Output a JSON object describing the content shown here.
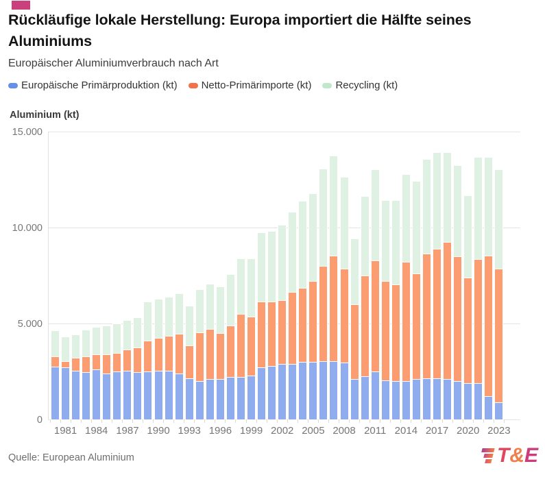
{
  "header": {
    "badge_color": "#c9407c",
    "title": "Rückläufige lokale Herstellung: Europa importiert die Hälfte seines Aluminiums",
    "subtitle": "Europäischer Aluminiumverbrauch nach Art"
  },
  "legend": [
    {
      "label": "Europäische Primärproduktion (kt)",
      "color": "#6590e8"
    },
    {
      "label": "Netto-Primärimporte (kt)",
      "color": "#f2714b"
    },
    {
      "label": "Recycling (kt)",
      "color": "#c2e8cb"
    }
  ],
  "chart_data": {
    "type": "bar",
    "stacked": true,
    "title": "Rückläufige lokale Herstellung: Europa importiert die Hälfte seines Aluminiums",
    "subtitle": "Europäischer Aluminiumverbrauch nach Art",
    "ylabel": "Aluminium (kt)",
    "xlabel": "",
    "ylim": [
      0,
      15000
    ],
    "grid": true,
    "legend_position": "top",
    "y_ticks": [
      {
        "label": "15.000",
        "value": 15000
      },
      {
        "label": "10.000",
        "value": 10000
      },
      {
        "label": "5.000",
        "value": 5000
      },
      {
        "label": "0",
        "value": 0
      }
    ],
    "x_tick_labels": [
      "1981",
      "1984",
      "1987",
      "1990",
      "1993",
      "1996",
      "1999",
      "2002",
      "2005",
      "2008",
      "2011",
      "2014",
      "2017",
      "2020",
      "2023"
    ],
    "categories": [
      1980,
      1981,
      1982,
      1983,
      1984,
      1985,
      1986,
      1987,
      1988,
      1989,
      1990,
      1991,
      1992,
      1993,
      1994,
      1995,
      1996,
      1997,
      1998,
      1999,
      2000,
      2001,
      2002,
      2003,
      2004,
      2005,
      2006,
      2007,
      2008,
      2009,
      2010,
      2011,
      2012,
      2013,
      2014,
      2015,
      2016,
      2017,
      2018,
      2019,
      2020,
      2021,
      2022,
      2023
    ],
    "series": [
      {
        "name": "Europäische Primärproduktion (kt)",
        "color": "#8fadee",
        "values": [
          2750,
          2700,
          2550,
          2450,
          2600,
          2400,
          2500,
          2550,
          2450,
          2500,
          2550,
          2550,
          2400,
          2150,
          2000,
          2100,
          2100,
          2200,
          2200,
          2300,
          2700,
          2800,
          2900,
          2900,
          3000,
          3000,
          3050,
          3050,
          2950,
          2100,
          2250,
          2500,
          2050,
          2000,
          2000,
          2100,
          2150,
          2150,
          2100,
          2000,
          1900,
          1900,
          1200,
          900
        ]
      },
      {
        "name": "Netto-Primärimporte (kt)",
        "color": "#fb9c71",
        "values": [
          550,
          350,
          650,
          850,
          800,
          1000,
          950,
          1100,
          1300,
          1600,
          1700,
          1800,
          2050,
          1700,
          2550,
          2600,
          2400,
          2700,
          3300,
          3050,
          3450,
          3350,
          3300,
          3750,
          3850,
          4200,
          4950,
          5500,
          4900,
          3900,
          5250,
          5800,
          5150,
          5050,
          6200,
          5500,
          6500,
          6750,
          7150,
          6500,
          5500,
          6450,
          7350,
          6950
        ]
      },
      {
        "name": "Recycling (kt)",
        "color": "#def1e2",
        "values": [
          1300,
          1250,
          1200,
          1350,
          1400,
          1450,
          1500,
          1500,
          1550,
          2000,
          2000,
          2000,
          2100,
          2050,
          2200,
          2350,
          2400,
          2650,
          2850,
          3000,
          3550,
          3650,
          3900,
          4150,
          4500,
          4550,
          5050,
          5150,
          4750,
          3400,
          4100,
          4700,
          4200,
          4350,
          4550,
          4800,
          4900,
          5000,
          4650,
          4700,
          4250,
          5300,
          5100,
          5150
        ]
      }
    ]
  },
  "footer": {
    "source": "Quelle: European Aluminium",
    "logo": {
      "t": "T",
      "amp": "&",
      "e": "E",
      "t_color": "#e0475e",
      "amp_color": "#ef7f4b",
      "e_color": "#ce3b7d"
    }
  }
}
